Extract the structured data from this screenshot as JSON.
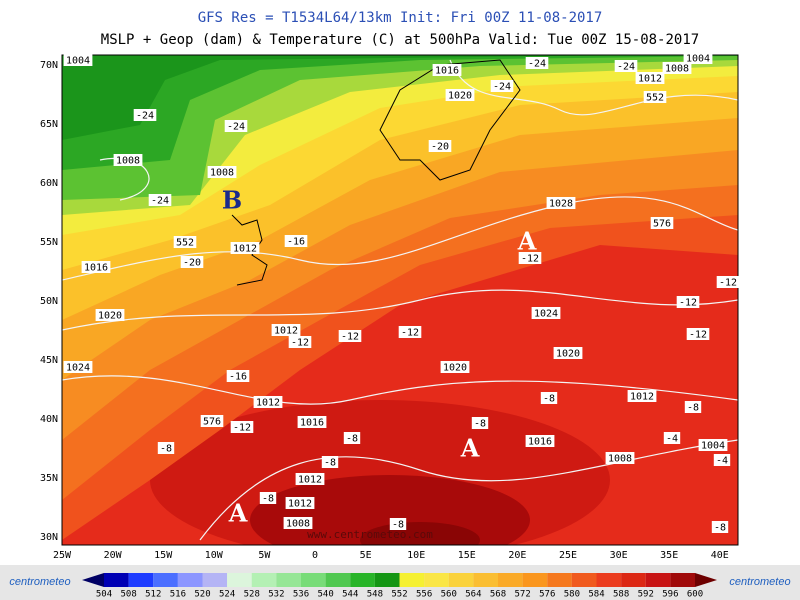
{
  "header": {
    "title": "GFS Res = T1534L64/13km   Init: Fri 00Z 11-08-2017",
    "subtitle": "MSLP + Geop (dam) & Temperature (C) at 500hPa   Valid: Tue 00Z 15-08-2017"
  },
  "map": {
    "latitude_labels": [
      "70N",
      "65N",
      "60N",
      "55N",
      "50N",
      "45N",
      "40N",
      "35N",
      "30N"
    ],
    "longitude_labels": [
      "25W",
      "20W",
      "15W",
      "10W",
      "5W",
      "0",
      "5E",
      "10E",
      "15E",
      "20E",
      "25E",
      "30E",
      "35E",
      "40E"
    ],
    "pressure_labels": [
      "1004",
      "1016",
      "1020",
      "1012",
      "1008",
      "1004",
      "552",
      "1008",
      "1008",
      "1012",
      "552",
      "1016",
      "1028",
      "576",
      "1020",
      "1024",
      "1012",
      "1020",
      "1024",
      "1020",
      "1012",
      "576",
      "1016",
      "1012",
      "1016",
      "1008",
      "1004",
      "1012",
      "1012",
      "1008"
    ],
    "temperature_labels": [
      "-24",
      "-24",
      "-24",
      "-24",
      "-24",
      "-24",
      "-20",
      "-20",
      "-16",
      "-12",
      "-12",
      "-12",
      "-12",
      "-16",
      "-12",
      "-8",
      "-8",
      "-8",
      "-8",
      "-8",
      "-8",
      "-8",
      "-12",
      "-12",
      "-12",
      "-8",
      "-4",
      "-4",
      "-8"
    ],
    "highs": [
      "A",
      "A",
      "A"
    ],
    "lows": [
      "B"
    ],
    "watermark": "www.centrometeo.com"
  },
  "colorbar": {
    "labels": [
      504,
      508,
      512,
      516,
      520,
      524,
      528,
      532,
      536,
      540,
      544,
      548,
      552,
      556,
      560,
      564,
      568,
      572,
      576,
      580,
      584,
      588,
      592,
      596,
      600
    ]
  },
  "logos": [
    "centrometeo",
    "centrometeo"
  ]
}
